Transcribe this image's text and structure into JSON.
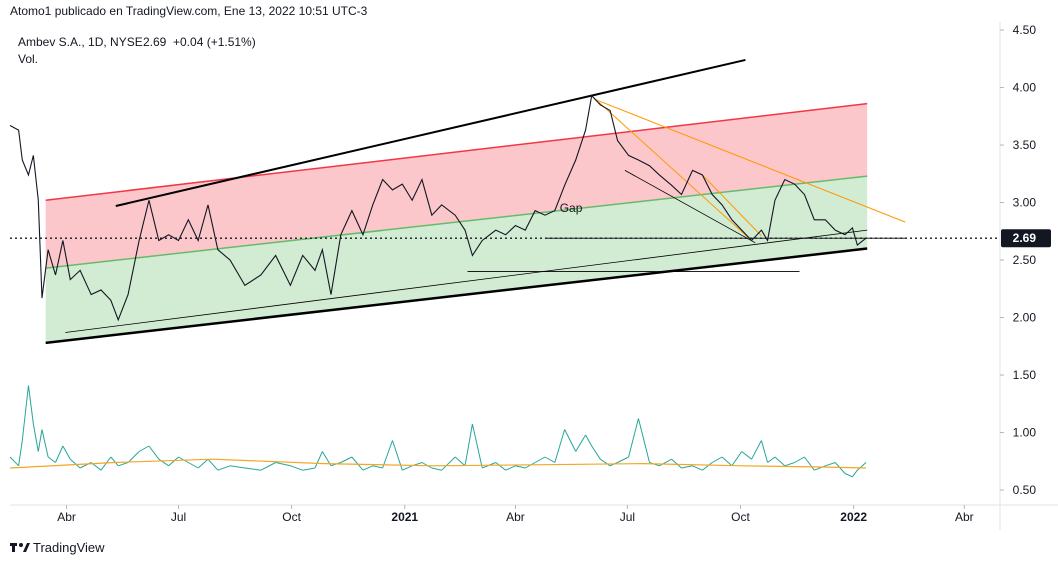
{
  "header": {
    "publisher": "Atomo1 publicado en TradingView.com, Ene 13, 2022 10:51 UTC-3",
    "symbol": "Ambev S.A., 1D, NYSE",
    "change": "+0.04 (+1.51%)",
    "volume_label": "Vol."
  },
  "footer": {
    "brand": "TradingView"
  },
  "chart_data": {
    "type": "line",
    "last": 2.69,
    "color": "#131722",
    "xlim": [
      45,
      850
    ],
    "ylim": [
      0.37,
      4.57
    ],
    "grid": false,
    "xticks": [
      {
        "value": 91,
        "label": "Abr"
      },
      {
        "value": 182,
        "label": "Jul"
      },
      {
        "value": 274,
        "label": "Oct"
      },
      {
        "value": 366,
        "label": "2021"
      },
      {
        "value": 456,
        "label": "Abr"
      },
      {
        "value": 547,
        "label": "Jul"
      },
      {
        "value": 639,
        "label": "Oct"
      },
      {
        "value": 731,
        "label": "2022"
      },
      {
        "value": 821,
        "label": "Abr"
      }
    ],
    "yticks": [
      {
        "value": 4.5,
        "label": "4.50"
      },
      {
        "value": 4.0,
        "label": "4.00"
      },
      {
        "value": 3.5,
        "label": "3.50"
      },
      {
        "value": 3.0,
        "label": "3.00"
      },
      {
        "value": 2.5,
        "label": "2.50"
      },
      {
        "value": 2.0,
        "label": "2.00"
      },
      {
        "value": 1.5,
        "label": "1.50"
      },
      {
        "value": 1.0,
        "label": "1.00"
      },
      {
        "value": 0.5,
        "label": "0.50"
      }
    ],
    "x": [
      45,
      52,
      55,
      60,
      64,
      68,
      71,
      76,
      82,
      88,
      94,
      102,
      111,
      119,
      127,
      133,
      141,
      150,
      158,
      166,
      174,
      182,
      190,
      198,
      206,
      214,
      224,
      236,
      249,
      261,
      273,
      283,
      293,
      299,
      306,
      314,
      323,
      332,
      340,
      348,
      356,
      364,
      372,
      380,
      388,
      396,
      407,
      415,
      421,
      429,
      440,
      448,
      456,
      464,
      472,
      480,
      488,
      496,
      505,
      513,
      518,
      525,
      533,
      539,
      548,
      556,
      565,
      573,
      583,
      591,
      600,
      608,
      616,
      624,
      632,
      640,
      648,
      656,
      661,
      667,
      675,
      683,
      691,
      699,
      708,
      716,
      724,
      730,
      734,
      741
    ],
    "series": [
      {
        "name": "Ambev S.A.",
        "color": "#131722",
        "values": [
          3.67,
          3.63,
          3.37,
          3.24,
          3.41,
          3.02,
          2.17,
          2.59,
          2.37,
          2.67,
          2.33,
          2.41,
          2.2,
          2.24,
          2.15,
          1.98,
          2.2,
          2.67,
          3.02,
          2.67,
          2.72,
          2.67,
          2.85,
          2.67,
          2.98,
          2.59,
          2.5,
          2.28,
          2.37,
          2.54,
          2.28,
          2.54,
          2.41,
          2.59,
          2.2,
          2.72,
          2.93,
          2.72,
          2.98,
          3.2,
          3.11,
          3.16,
          3.02,
          3.2,
          2.89,
          2.98,
          2.89,
          2.76,
          2.54,
          2.67,
          2.76,
          2.72,
          2.8,
          2.76,
          2.93,
          2.89,
          2.93,
          3.15,
          3.37,
          3.63,
          3.93,
          3.85,
          3.8,
          3.54,
          3.41,
          3.37,
          3.32,
          3.24,
          3.15,
          3.07,
          3.28,
          3.24,
          3.07,
          2.98,
          2.85,
          2.76,
          2.67,
          2.76,
          2.67,
          3.02,
          3.2,
          3.16,
          3.07,
          2.85,
          2.85,
          2.76,
          2.72,
          2.78,
          2.63,
          2.69
        ]
      }
    ],
    "volume": {
      "color": "#26a69a",
      "ylim": [
        0,
        100
      ],
      "values": [
        30,
        22,
        45,
        95,
        60,
        35,
        55,
        30,
        25,
        40,
        28,
        20,
        25,
        18,
        30,
        22,
        25,
        35,
        40,
        28,
        22,
        30,
        25,
        20,
        28,
        18,
        22,
        20,
        18,
        25,
        22,
        18,
        20,
        35,
        22,
        25,
        30,
        18,
        22,
        20,
        45,
        18,
        22,
        25,
        20,
        18,
        30,
        22,
        60,
        20,
        25,
        18,
        22,
        20,
        25,
        30,
        25,
        55,
        35,
        50,
        40,
        28,
        22,
        25,
        30,
        65,
        25,
        22,
        28,
        20,
        22,
        18,
        25,
        30,
        22,
        35,
        28,
        45,
        25,
        30,
        22,
        25,
        30,
        18,
        22,
        25,
        15,
        12,
        18,
        25
      ],
      "ma": {
        "color": "#f5a623",
        "x": [
          45,
          130,
          210,
          300,
          390,
          480,
          560,
          640,
          700,
          741
        ],
        "values": [
          20,
          25,
          28,
          24,
          22,
          23,
          24,
          22,
          21,
          20
        ]
      }
    },
    "channel": {
      "upper": {
        "color": "#f23645",
        "fill": "rgba(242,54,69,0.28)",
        "x": [
          74,
          742
        ],
        "values": [
          3.02,
          3.86
        ]
      },
      "middle": {
        "color": "#66bb6a",
        "fill": "rgba(76,175,80,0.25)",
        "x": [
          74,
          742
        ],
        "values": [
          2.43,
          3.23
        ]
      },
      "lower": {
        "color": "#000000",
        "x": [
          74,
          742
        ],
        "values": [
          1.78,
          2.6
        ]
      }
    },
    "drawings": [
      {
        "color": "#000000",
        "width": 2,
        "x": [
          131,
          643
        ],
        "values": [
          2.97,
          4.24
        ]
      },
      {
        "color": "#000000",
        "width": 0.8,
        "x": [
          90,
          742
        ],
        "values": [
          1.87,
          2.76
        ]
      },
      {
        "color": "#000000",
        "width": 0.8,
        "x": [
          417,
          687
        ],
        "values": [
          2.4,
          2.4
        ]
      },
      {
        "color": "#000000",
        "width": 0.8,
        "x": [
          545,
          651
        ],
        "values": [
          3.28,
          2.65
        ]
      },
      {
        "color": "#000000",
        "width": 0.8,
        "x": [
          480,
          773
        ],
        "values": [
          2.69,
          2.69
        ]
      },
      {
        "color": "#ff9800",
        "width": 1,
        "x": [
          520,
          773
        ],
        "values": [
          3.9,
          2.83
        ]
      },
      {
        "color": "#ff9800",
        "width": 1,
        "x": [
          524,
          648
        ],
        "values": [
          3.87,
          2.67
        ]
      },
      {
        "color": "#ff9800",
        "width": 1,
        "x": [
          608,
          656
        ],
        "values": [
          3.24,
          2.71
        ]
      }
    ],
    "annotation": {
      "text": "Gap",
      "x": 492,
      "y": 2.92
    }
  }
}
